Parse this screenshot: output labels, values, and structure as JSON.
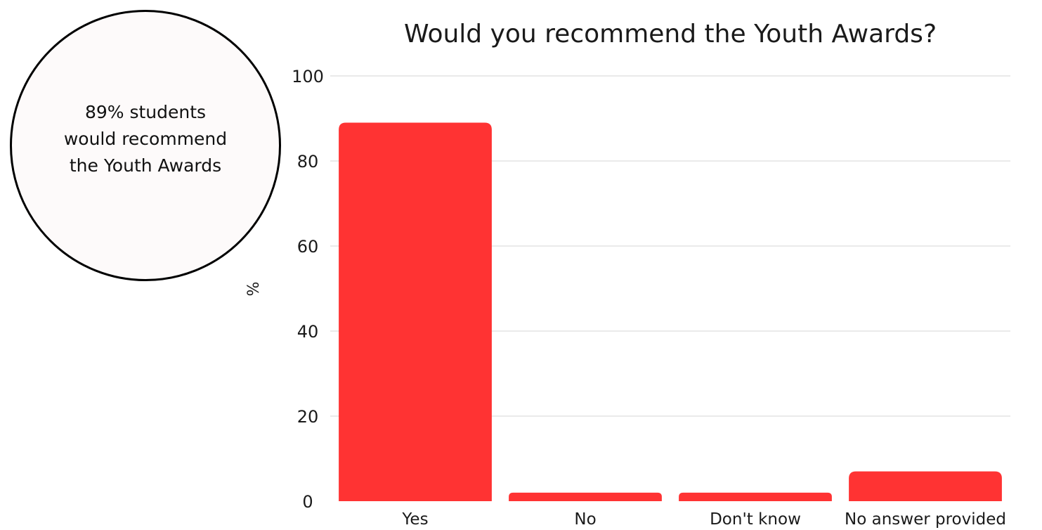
{
  "callout": {
    "text": "89% students\nwould recommend\nthe Youth Awards",
    "fill_color": "#fdfafa",
    "border_color": "#000000"
  },
  "chart_data": {
    "type": "bar",
    "title": "Would you recommend the Youth Awards?",
    "xlabel": "",
    "ylabel": "%",
    "categories": [
      "Yes",
      "No",
      "Don't know",
      "No answer provided"
    ],
    "values": [
      89,
      2,
      2,
      7
    ],
    "ylim": [
      0,
      100
    ],
    "yticks": [
      0,
      20,
      40,
      60,
      80,
      100
    ],
    "grid": true,
    "bar_color": "#ff3333"
  }
}
